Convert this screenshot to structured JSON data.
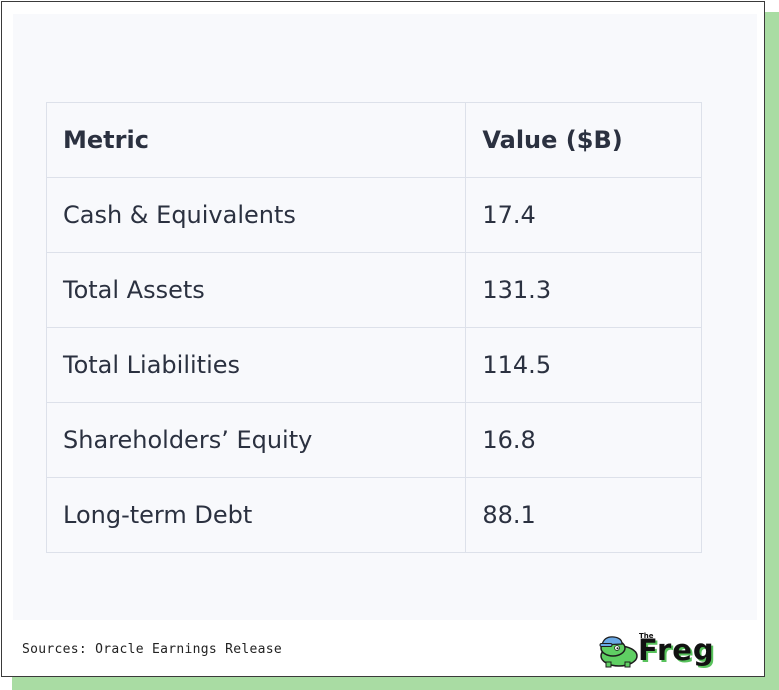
{
  "table": {
    "headers": [
      "Metric",
      "Value ($B)"
    ],
    "rows": [
      {
        "metric": "Cash & Equivalents",
        "value": "17.4"
      },
      {
        "metric": "Total Assets",
        "value": "131.3"
      },
      {
        "metric": "Total Liabilities",
        "value": "114.5"
      },
      {
        "metric": "Shareholders’ Equity",
        "value": "16.8"
      },
      {
        "metric": "Long-term Debt",
        "value": "88.1"
      }
    ]
  },
  "footer": {
    "sources": "Sources: Oracle Earnings Release",
    "logo": {
      "small_text": "The",
      "word": "Freg",
      "icon": "frog-mascot-icon"
    }
  },
  "colors": {
    "shadow": "#a9dca3",
    "panel": "#f8f9fc",
    "grid": "#dde1ea",
    "text": "#2b3140",
    "logo_accent": "#58c25c"
  }
}
